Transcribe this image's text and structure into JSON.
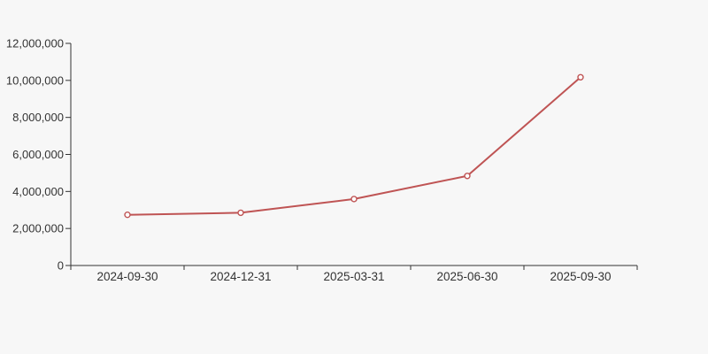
{
  "colors": {
    "background": "#f7f7f7",
    "line": "#bf5454",
    "marker_fill": "#ffffff",
    "axis": "#333333",
    "label": "#333333"
  },
  "chart_data": {
    "type": "line",
    "title": "",
    "xlabel": "",
    "ylabel": "",
    "categories": [
      "2024-09-30",
      "2024-12-31",
      "2025-03-31",
      "2025-06-30",
      "2025-09-30"
    ],
    "series": [
      {
        "name": "value",
        "values": [
          2740000,
          2850000,
          3590000,
          4840000,
          10170000
        ]
      }
    ],
    "ylim": [
      0,
      12000000
    ],
    "y_tick_step": 2000000,
    "y_ticks": [
      0,
      2000000,
      4000000,
      6000000,
      8000000,
      10000000,
      12000000
    ],
    "y_tick_labels": [
      "0",
      "2,000,000",
      "4,000,000",
      "6,000,000",
      "8,000,000",
      "10,000,000",
      "12,000,000"
    ],
    "grid": false,
    "legend_position": "none",
    "marker": "open-circle"
  }
}
